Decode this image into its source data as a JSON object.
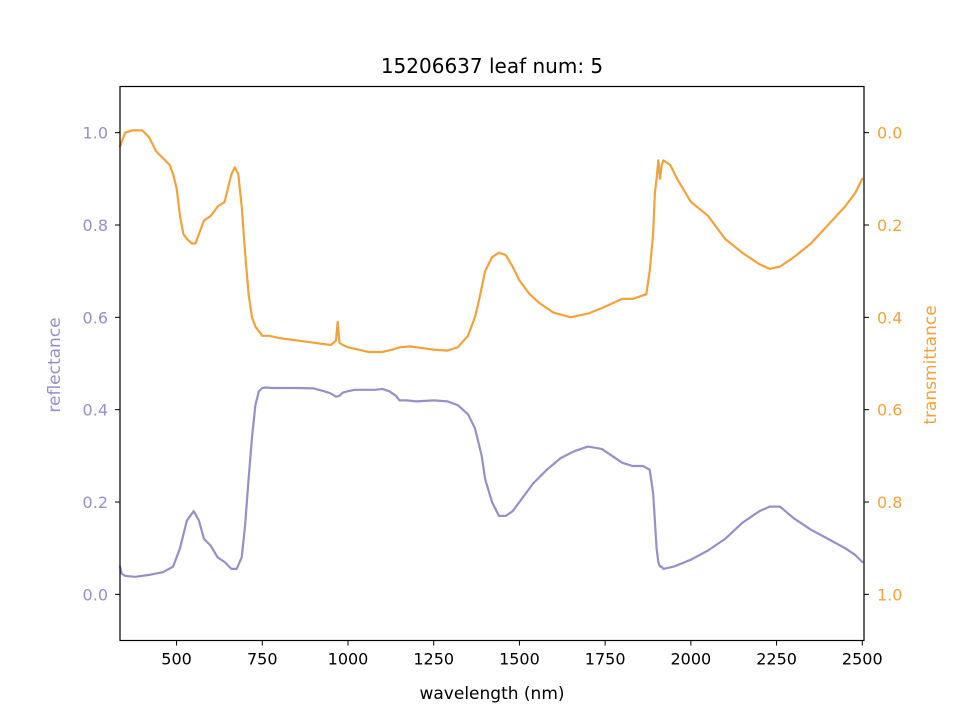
{
  "chart_data": {
    "type": "line",
    "title": "15206637 leaf num: 5",
    "xlabel": "wavelength (nm)",
    "ylabel": "reflectance",
    "y2label": "transmittance",
    "xlim": [
      335,
      2505
    ],
    "ylim": [
      -0.1,
      1.1
    ],
    "y2lim": [
      1.1,
      -0.1
    ],
    "y2_inverted": true,
    "xticks": [
      500,
      750,
      1000,
      1250,
      1500,
      1750,
      2000,
      2250,
      2500
    ],
    "xtick_labels": [
      "500",
      "750",
      "1000",
      "1250",
      "1500",
      "1750",
      "2000",
      "2250",
      "2500"
    ],
    "yticks": [
      0.0,
      0.2,
      0.4,
      0.6,
      0.8,
      1.0
    ],
    "ytick_labels": [
      "0.0",
      "0.2",
      "0.4",
      "0.6",
      "0.8",
      "1.0"
    ],
    "y2ticks": [
      0.0,
      0.2,
      0.4,
      0.6,
      0.8,
      1.0
    ],
    "y2tick_labels": [
      "0.0",
      "0.2",
      "0.4",
      "0.6",
      "0.8",
      "1.0"
    ],
    "grid": false,
    "colors": {
      "reflectance": "#9590c5",
      "transmittance": "#f0a33c"
    },
    "series": [
      {
        "axis": "left",
        "x": [
          335,
          340,
          350,
          380,
          420,
          460,
          490,
          510,
          530,
          550,
          565,
          580,
          600,
          620,
          640,
          660,
          675,
          690,
          700,
          710,
          720,
          730,
          740,
          750,
          760,
          780,
          800,
          850,
          900,
          930,
          950,
          965,
          975,
          985,
          1000,
          1020,
          1050,
          1080,
          1100,
          1120,
          1140,
          1150,
          1170,
          1200,
          1250,
          1290,
          1320,
          1350,
          1370,
          1390,
          1400,
          1420,
          1440,
          1460,
          1480,
          1500,
          1540,
          1580,
          1620,
          1660,
          1700,
          1740,
          1770,
          1800,
          1830,
          1860,
          1880,
          1890,
          1900,
          1905,
          1910,
          1915,
          1920,
          1950,
          2000,
          2050,
          2100,
          2150,
          2200,
          2230,
          2260,
          2300,
          2350,
          2400,
          2450,
          2480,
          2500
        ],
        "y": [
          0.06,
          0.045,
          0.04,
          0.038,
          0.042,
          0.048,
          0.06,
          0.1,
          0.16,
          0.18,
          0.16,
          0.12,
          0.105,
          0.08,
          0.07,
          0.055,
          0.055,
          0.08,
          0.15,
          0.25,
          0.34,
          0.41,
          0.44,
          0.447,
          0.448,
          0.447,
          0.447,
          0.447,
          0.446,
          0.44,
          0.435,
          0.428,
          0.43,
          0.437,
          0.44,
          0.443,
          0.443,
          0.443,
          0.445,
          0.44,
          0.43,
          0.42,
          0.42,
          0.418,
          0.42,
          0.418,
          0.41,
          0.39,
          0.36,
          0.3,
          0.25,
          0.2,
          0.17,
          0.17,
          0.18,
          0.2,
          0.24,
          0.27,
          0.295,
          0.31,
          0.32,
          0.315,
          0.3,
          0.285,
          0.278,
          0.278,
          0.27,
          0.22,
          0.1,
          0.07,
          0.06,
          0.06,
          0.055,
          0.06,
          0.075,
          0.095,
          0.12,
          0.155,
          0.18,
          0.19,
          0.19,
          0.165,
          0.14,
          0.12,
          0.1,
          0.085,
          0.07
        ]
      },
      {
        "axis": "right",
        "x": [
          335,
          340,
          350,
          370,
          390,
          400,
          420,
          440,
          460,
          480,
          490,
          500,
          510,
          520,
          530,
          545,
          555,
          565,
          580,
          600,
          620,
          640,
          660,
          670,
          680,
          690,
          700,
          710,
          720,
          730,
          740,
          750,
          770,
          800,
          850,
          900,
          930,
          950,
          965,
          970,
          975,
          985,
          1000,
          1030,
          1060,
          1100,
          1130,
          1150,
          1180,
          1200,
          1250,
          1290,
          1320,
          1350,
          1370,
          1380,
          1400,
          1420,
          1440,
          1460,
          1480,
          1500,
          1530,
          1560,
          1600,
          1650,
          1700,
          1740,
          1770,
          1800,
          1830,
          1870,
          1880,
          1890,
          1895,
          1900,
          1905,
          1910,
          1915,
          1920,
          1940,
          1960,
          2000,
          2050,
          2100,
          2150,
          2200,
          2230,
          2260,
          2300,
          2350,
          2400,
          2450,
          2480,
          2500
        ],
        "y": [
          0.03,
          0.02,
          0.0,
          -0.005,
          -0.005,
          -0.005,
          0.01,
          0.04,
          0.055,
          0.07,
          0.09,
          0.12,
          0.18,
          0.22,
          0.23,
          0.24,
          0.24,
          0.22,
          0.19,
          0.18,
          0.16,
          0.15,
          0.09,
          0.075,
          0.09,
          0.16,
          0.26,
          0.35,
          0.4,
          0.42,
          0.43,
          0.44,
          0.44,
          0.445,
          0.45,
          0.455,
          0.458,
          0.46,
          0.45,
          0.41,
          0.455,
          0.46,
          0.465,
          0.47,
          0.475,
          0.475,
          0.47,
          0.465,
          0.463,
          0.465,
          0.47,
          0.472,
          0.465,
          0.44,
          0.4,
          0.37,
          0.3,
          0.27,
          0.26,
          0.265,
          0.29,
          0.32,
          0.35,
          0.37,
          0.39,
          0.4,
          0.392,
          0.38,
          0.37,
          0.36,
          0.36,
          0.35,
          0.3,
          0.22,
          0.13,
          0.1,
          0.06,
          0.1,
          0.07,
          0.06,
          0.07,
          0.1,
          0.15,
          0.18,
          0.23,
          0.26,
          0.285,
          0.295,
          0.29,
          0.27,
          0.24,
          0.2,
          0.16,
          0.13,
          0.1
        ]
      }
    ]
  }
}
